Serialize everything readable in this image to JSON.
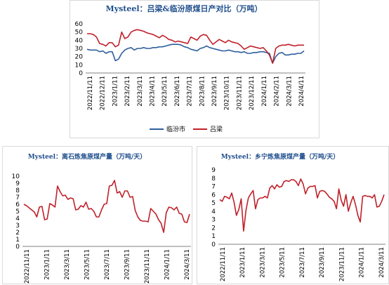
{
  "chart_data": [
    {
      "type": "line",
      "title": "Mysteel：吕梁&临汾原煤日产对比（万吨）",
      "ylim": [
        0,
        60
      ],
      "yticks": [
        0,
        10,
        20,
        30,
        40,
        50,
        60
      ],
      "xticks": [
        "2022/11/11",
        "2022/12/11",
        "2023/1/11",
        "2023/2/11",
        "2023/3/11",
        "2023/4/11",
        "2023/5/11",
        "2023/6/11",
        "2023/7/11",
        "2023/8/11",
        "2023/9/11",
        "2023/10/11",
        "2023/11/11",
        "2023/12/11",
        "2024/1/11",
        "2024/2/11",
        "2024/3/11",
        "2024/4/11"
      ],
      "grid": false,
      "legend_position": "bottom",
      "series": [
        {
          "name": "临汾市",
          "color": "#2e5f9e",
          "values": [
            29,
            28,
            28,
            28,
            26,
            27,
            24,
            26,
            26,
            15,
            17,
            24,
            28,
            30,
            31,
            28,
            30,
            30,
            31,
            30,
            30,
            31,
            31,
            32,
            32,
            33,
            34,
            35,
            35,
            35,
            34,
            32,
            31,
            29,
            28,
            27,
            30,
            31,
            33,
            31,
            30,
            29,
            28,
            27,
            27,
            28,
            27,
            26,
            26,
            25,
            26,
            24,
            24,
            25,
            25,
            26,
            26,
            25,
            24,
            12,
            20,
            24,
            25,
            22,
            22,
            23,
            23,
            24,
            24,
            27
          ]
        },
        {
          "name": "吕梁",
          "color": "#c0202a",
          "values": [
            48,
            48,
            47,
            44,
            36,
            35,
            33,
            37,
            37,
            32,
            34,
            50,
            42,
            44,
            50,
            52,
            53,
            52,
            51,
            49,
            48,
            47,
            45,
            43,
            46,
            44,
            41,
            40,
            38,
            39,
            38,
            37,
            36,
            44,
            42,
            40,
            45,
            47,
            46,
            40,
            35,
            38,
            41,
            39,
            37,
            40,
            38,
            37,
            36,
            33,
            29,
            31,
            33,
            32,
            31,
            30,
            31,
            27,
            22,
            12,
            30,
            33,
            34,
            34,
            35,
            34,
            33,
            34,
            34,
            34
          ]
        }
      ]
    },
    {
      "type": "line",
      "title": "Mysteel：离石炼焦原煤产量（万吨/天）",
      "ylim": [
        0,
        10
      ],
      "yticks": [
        0,
        1,
        2,
        3,
        4,
        5,
        6,
        7,
        8,
        9,
        10
      ],
      "xticks": [
        "2022/11/11",
        "2023/1/11",
        "2023/3/11",
        "2023/5/11",
        "2023/7/11",
        "2023/9/11",
        "2023/11/11",
        "2024/1/11",
        "2024/3/11"
      ],
      "grid": false,
      "series": [
        {
          "name": "",
          "color": "#c0202a",
          "values": [
            6.0,
            5.8,
            5.5,
            5.2,
            4.9,
            4.2,
            5.6,
            5.7,
            3.8,
            3.9,
            6.1,
            5.9,
            5.6,
            8.6,
            7.8,
            7.2,
            7.3,
            6.7,
            6.9,
            6.8,
            5.2,
            5.3,
            5.8,
            5.6,
            6.3,
            5.3,
            5.4,
            5.0,
            4.2,
            4.2,
            5.2,
            6.0,
            6.1,
            8.6,
            8.7,
            9.4,
            7.6,
            7.8,
            7.0,
            7.9,
            7.9,
            7.0,
            7.1,
            5.1,
            4.2,
            3.7,
            3.6,
            3.6,
            3.5,
            5.4,
            5.0,
            4.6,
            3.8,
            3.3,
            2.0,
            4.8,
            5.6,
            5.5,
            5.2,
            5.6,
            4.7,
            4.6,
            3.5,
            3.4,
            4.6
          ]
        }
      ]
    },
    {
      "type": "line",
      "title": "Mysteel：乡宁炼焦原煤产量（万吨/天）",
      "ylim": [
        0,
        9
      ],
      "yticks": [
        0,
        1,
        2,
        3,
        4,
        5,
        6,
        7,
        8,
        9
      ],
      "xticks": [
        "2022/11/11",
        "2023/1/11",
        "2023/3/11",
        "2023/5/11",
        "2023/7/11",
        "2023/9/11",
        "2023/11/11",
        "2024/1/11",
        "2024/3/11"
      ],
      "grid": false,
      "series": [
        {
          "name": "",
          "color": "#c0202a",
          "values": [
            5.4,
            5.2,
            5.8,
            5.7,
            5.5,
            6.2,
            5.1,
            3.5,
            4.2,
            5.5,
            1.6,
            4.1,
            5.6,
            6.1,
            6.5,
            4.3,
            5.4,
            5.6,
            5.6,
            5.8,
            5.6,
            6.8,
            7.1,
            6.7,
            7.2,
            6.9,
            7.0,
            7.6,
            7.7,
            7.6,
            7.8,
            7.8,
            7.6,
            7.1,
            7.9,
            7.3,
            6.1,
            6.8,
            7.0,
            7.0,
            7.1,
            5.6,
            6.4,
            6.5,
            6.4,
            6.1,
            5.7,
            5.5,
            5.2,
            4.3,
            6.7,
            5.3,
            4.6,
            6.0,
            4.0,
            5.0,
            5.8,
            4.8,
            3.5,
            2.7,
            5.8,
            5.9,
            5.8,
            5.8,
            5.6,
            6.0,
            4.5,
            4.6,
            5.2,
            6.0
          ]
        }
      ]
    }
  ]
}
